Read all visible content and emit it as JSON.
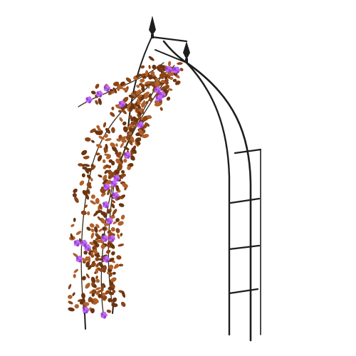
{
  "colors": {
    "background": "#ffffff",
    "frame": "#1e1e1e",
    "stem": "#3a2a1a",
    "leaf_dark": "#6b3410",
    "leaf_mid": "#8a4518",
    "leaf_light": "#b0602a",
    "flower": "#9a3fd8",
    "flower_light": "#c06cf0"
  }
}
